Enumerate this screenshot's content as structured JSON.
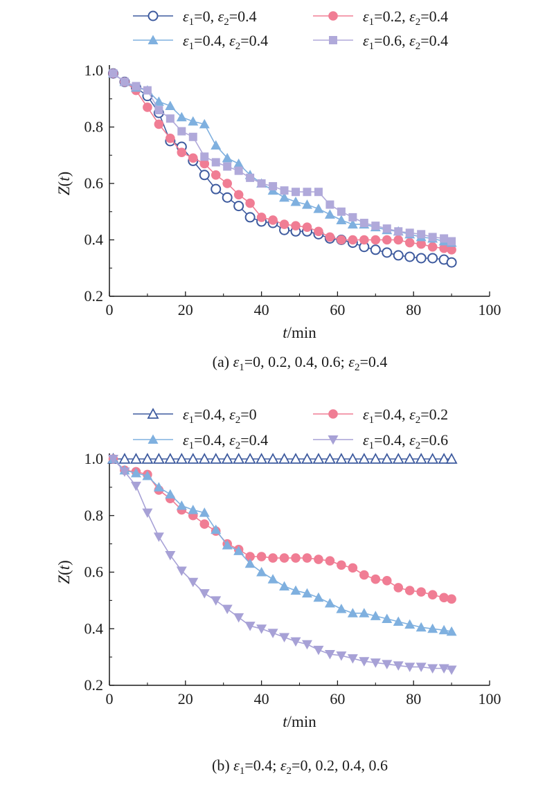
{
  "chart_data": [
    {
      "type": "line",
      "caption": "(a) ε₁=0, 0.2, 0.4, 0.6; ε₂=0.4",
      "caption_parts": {
        "pre": "(a) ",
        "e1": "ε",
        "s1": "1",
        "mid": "=0, 0.2, 0.4, 0.6; ",
        "e2": "ε",
        "s2": "2",
        "post": "=0.4"
      },
      "xlabel": "t/min",
      "ylabel": "Z(t)",
      "xlim": [
        0,
        100
      ],
      "ylim": [
        0.2,
        1.0
      ],
      "xticks": [
        "0",
        "20",
        "40",
        "60",
        "80",
        "100"
      ],
      "yticks": [
        "0.2",
        "0.4",
        "0.6",
        "0.8",
        "1.0"
      ],
      "x": [
        1,
        4,
        7,
        10,
        13,
        16,
        19,
        22,
        25,
        28,
        31,
        34,
        37,
        40,
        43,
        46,
        49,
        52,
        55,
        58,
        61,
        64,
        67,
        70,
        73,
        76,
        79,
        82,
        85,
        88,
        90
      ],
      "legend_placement": "top",
      "series": [
        {
          "name": "ε₁=0, ε₂=0.4",
          "label_parts": {
            "e1": "ε",
            "s1": "1",
            "v1": "=0, ",
            "e2": "ε",
            "s2": "2",
            "v2": "=0.4"
          },
          "color": "#3d5a9e",
          "marker": "circle-open",
          "values": [
            0.99,
            0.96,
            0.94,
            0.91,
            0.85,
            0.75,
            0.73,
            0.68,
            0.63,
            0.58,
            0.55,
            0.52,
            0.48,
            0.465,
            0.46,
            0.435,
            0.43,
            0.43,
            0.42,
            0.405,
            0.4,
            0.39,
            0.375,
            0.365,
            0.355,
            0.345,
            0.34,
            0.335,
            0.335,
            0.33,
            0.32
          ]
        },
        {
          "name": "ε₁=0.2, ε₂=0.4",
          "label_parts": {
            "e1": "ε",
            "s1": "1",
            "v1": "=0.2, ",
            "e2": "ε",
            "s2": "2",
            "v2": "=0.4"
          },
          "color": "#f07d94",
          "marker": "circle-filled",
          "values": [
            0.99,
            0.96,
            0.93,
            0.87,
            0.81,
            0.76,
            0.71,
            0.69,
            0.67,
            0.63,
            0.6,
            0.56,
            0.53,
            0.48,
            0.47,
            0.455,
            0.45,
            0.445,
            0.43,
            0.41,
            0.4,
            0.4,
            0.4,
            0.4,
            0.4,
            0.4,
            0.39,
            0.385,
            0.375,
            0.37,
            0.365
          ]
        },
        {
          "name": "ε₁=0.4, ε₂=0.4",
          "label_parts": {
            "e1": "ε",
            "s1": "1",
            "v1": "=0.4, ",
            "e2": "ε",
            "s2": "2",
            "v2": "=0.4"
          },
          "color": "#7fb0df",
          "marker": "triangle-up",
          "values": [
            0.99,
            0.96,
            0.94,
            0.93,
            0.89,
            0.875,
            0.835,
            0.82,
            0.81,
            0.735,
            0.69,
            0.67,
            0.63,
            0.6,
            0.575,
            0.55,
            0.535,
            0.525,
            0.51,
            0.49,
            0.47,
            0.455,
            0.455,
            0.445,
            0.435,
            0.43,
            0.42,
            0.41,
            0.405,
            0.395,
            0.39
          ]
        },
        {
          "name": "ε₁=0.6, ε₂=0.4",
          "label_parts": {
            "e1": "ε",
            "s1": "1",
            "v1": "=0.6, ",
            "e2": "ε",
            "s2": "2",
            "v2": "=0.4"
          },
          "color": "#b0a9da",
          "marker": "square",
          "values": [
            0.99,
            0.96,
            0.945,
            0.93,
            0.86,
            0.83,
            0.785,
            0.765,
            0.695,
            0.675,
            0.66,
            0.645,
            0.62,
            0.6,
            0.59,
            0.575,
            0.57,
            0.57,
            0.57,
            0.525,
            0.5,
            0.48,
            0.46,
            0.45,
            0.44,
            0.43,
            0.425,
            0.42,
            0.41,
            0.405,
            0.395
          ]
        }
      ]
    },
    {
      "type": "line",
      "caption": "(b) ε₁=0.4; ε₂=0, 0.2, 0.4, 0.6",
      "caption_parts": {
        "pre": "(b) ",
        "e1": "ε",
        "s1": "1",
        "mid": "=0.4; ",
        "e2": "ε",
        "s2": "2",
        "post": "=0, 0.2, 0.4, 0.6"
      },
      "xlabel": "t/min",
      "ylabel": "Z(t)",
      "xlim": [
        0,
        100
      ],
      "ylim": [
        0.2,
        1.0
      ],
      "xticks": [
        "0",
        "20",
        "40",
        "60",
        "80",
        "100"
      ],
      "yticks": [
        "0.2",
        "0.4",
        "0.6",
        "0.8",
        "1.0"
      ],
      "x": [
        1,
        4,
        7,
        10,
        13,
        16,
        19,
        22,
        25,
        28,
        31,
        34,
        37,
        40,
        43,
        46,
        49,
        52,
        55,
        58,
        61,
        64,
        67,
        70,
        73,
        76,
        79,
        82,
        85,
        88,
        90
      ],
      "legend_placement": "top",
      "series": [
        {
          "name": "ε₁=0.4, ε₂=0",
          "label_parts": {
            "e1": "ε",
            "s1": "1",
            "v1": "=0.4, ",
            "e2": "ε",
            "s2": "2",
            "v2": "=0"
          },
          "color": "#3d5a9e",
          "marker": "triangle-open",
          "values": [
            1.0,
            1.0,
            1.0,
            1.0,
            1.0,
            1.0,
            1.0,
            1.0,
            1.0,
            1.0,
            1.0,
            1.0,
            1.0,
            1.0,
            1.0,
            1.0,
            1.0,
            1.0,
            1.0,
            1.0,
            1.0,
            1.0,
            1.0,
            1.0,
            1.0,
            1.0,
            1.0,
            1.0,
            1.0,
            1.0,
            1.0
          ]
        },
        {
          "name": "ε₁=0.4, ε₂=0.2",
          "label_parts": {
            "e1": "ε",
            "s1": "1",
            "v1": "=0.4, ",
            "e2": "ε",
            "s2": "2",
            "v2": "=0.2"
          },
          "color": "#f07d94",
          "marker": "circle-filled",
          "values": [
            1.0,
            0.96,
            0.955,
            0.945,
            0.89,
            0.86,
            0.82,
            0.8,
            0.77,
            0.745,
            0.7,
            0.68,
            0.655,
            0.655,
            0.65,
            0.65,
            0.65,
            0.65,
            0.645,
            0.64,
            0.625,
            0.615,
            0.59,
            0.575,
            0.57,
            0.545,
            0.535,
            0.53,
            0.52,
            0.51,
            0.505
          ]
        },
        {
          "name": "ε₁=0.4, ε₂=0.4",
          "label_parts": {
            "e1": "ε",
            "s1": "1",
            "v1": "=0.4, ",
            "e2": "ε",
            "s2": "2",
            "v2": "=0.4"
          },
          "color": "#7fb0df",
          "marker": "triangle-up",
          "values": [
            1.0,
            0.96,
            0.95,
            0.94,
            0.9,
            0.875,
            0.835,
            0.82,
            0.81,
            0.75,
            0.695,
            0.675,
            0.63,
            0.6,
            0.575,
            0.55,
            0.535,
            0.525,
            0.51,
            0.49,
            0.47,
            0.455,
            0.455,
            0.445,
            0.435,
            0.425,
            0.415,
            0.405,
            0.4,
            0.395,
            0.39
          ]
        },
        {
          "name": "ε₁=0.4, ε₂=0.6",
          "label_parts": {
            "e1": "ε",
            "s1": "1",
            "v1": "=0.4, ",
            "e2": "ε",
            "s2": "2",
            "v2": "=0.6"
          },
          "color": "#a7a1d6",
          "marker": "triangle-down",
          "values": [
            1.0,
            0.955,
            0.905,
            0.81,
            0.725,
            0.66,
            0.605,
            0.565,
            0.525,
            0.5,
            0.47,
            0.44,
            0.41,
            0.4,
            0.385,
            0.37,
            0.355,
            0.345,
            0.325,
            0.31,
            0.305,
            0.295,
            0.285,
            0.28,
            0.275,
            0.27,
            0.265,
            0.265,
            0.26,
            0.26,
            0.255
          ]
        }
      ]
    }
  ]
}
